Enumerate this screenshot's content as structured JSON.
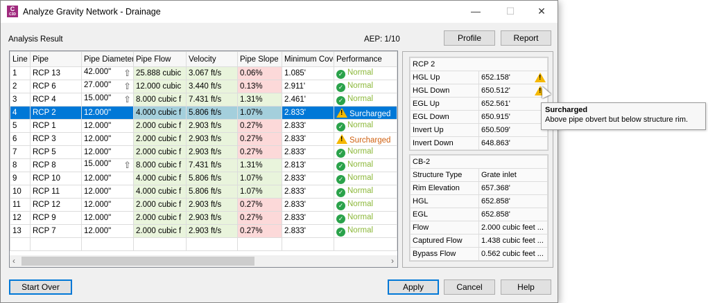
{
  "window": {
    "title": "Analyze Gravity Network - Drainage",
    "app_icon": "C3D",
    "controls": {
      "minimize": "—",
      "maximize": "☐",
      "close": "✕"
    }
  },
  "header": {
    "section_label": "Analysis Result",
    "aep": "AEP: 1/10",
    "profile_button": "Profile",
    "report_button": "Report"
  },
  "table": {
    "columns": [
      "Line",
      "Pipe",
      "Pipe Diameter",
      "Pipe Flow",
      "Velocity",
      "Pipe Slope",
      "Minimum Cover",
      "Performance"
    ],
    "selected_line": "4",
    "rows": [
      {
        "line": "1",
        "pipe": "RCP 13",
        "diameter": "42.000\"",
        "arrow": true,
        "flow": "25.888 cubic",
        "velocity": "3.067 ft/s",
        "slope": "0.06%",
        "slope_status": "bad",
        "cover": "1.085'",
        "performance": "Normal"
      },
      {
        "line": "2",
        "pipe": "RCP 6",
        "diameter": "27.000\"",
        "arrow": true,
        "flow": "12.000 cubic",
        "velocity": "3.440 ft/s",
        "slope": "0.13%",
        "slope_status": "bad",
        "cover": "2.911'",
        "performance": "Normal"
      },
      {
        "line": "3",
        "pipe": "RCP 4",
        "diameter": "15.000\"",
        "arrow": true,
        "flow": "8.000 cubic f",
        "velocity": "7.431 ft/s",
        "slope": "1.31%",
        "slope_status": "good",
        "cover": "2.461'",
        "performance": "Normal"
      },
      {
        "line": "4",
        "pipe": "RCP 2",
        "diameter": "12.000\"",
        "arrow": false,
        "flow": "4.000 cubic f",
        "velocity": "5.806 ft/s",
        "slope": "1.07%",
        "slope_status": "good",
        "cover": "2.833'",
        "performance": "Surcharged"
      },
      {
        "line": "5",
        "pipe": "RCP 1",
        "diameter": "12.000\"",
        "arrow": false,
        "flow": "2.000 cubic f",
        "velocity": "2.903 ft/s",
        "slope": "0.27%",
        "slope_status": "bad",
        "cover": "2.833'",
        "performance": "Normal"
      },
      {
        "line": "6",
        "pipe": "RCP 3",
        "diameter": "12.000\"",
        "arrow": false,
        "flow": "2.000 cubic f",
        "velocity": "2.903 ft/s",
        "slope": "0.27%",
        "slope_status": "bad",
        "cover": "2.833'",
        "performance": "Surcharged"
      },
      {
        "line": "7",
        "pipe": "RCP 5",
        "diameter": "12.000\"",
        "arrow": false,
        "flow": "2.000 cubic f",
        "velocity": "2.903 ft/s",
        "slope": "0.27%",
        "slope_status": "bad",
        "cover": "2.833'",
        "performance": "Normal"
      },
      {
        "line": "8",
        "pipe": "RCP 8",
        "diameter": "15.000\"",
        "arrow": true,
        "flow": "8.000 cubic f",
        "velocity": "7.431 ft/s",
        "slope": "1.31%",
        "slope_status": "good",
        "cover": "2.813'",
        "performance": "Normal"
      },
      {
        "line": "9",
        "pipe": "RCP 10",
        "diameter": "12.000\"",
        "arrow": false,
        "flow": "4.000 cubic f",
        "velocity": "5.806 ft/s",
        "slope": "1.07%",
        "slope_status": "good",
        "cover": "2.833'",
        "performance": "Normal"
      },
      {
        "line": "10",
        "pipe": "RCP 11",
        "diameter": "12.000\"",
        "arrow": false,
        "flow": "4.000 cubic f",
        "velocity": "5.806 ft/s",
        "slope": "1.07%",
        "slope_status": "good",
        "cover": "2.833'",
        "performance": "Normal"
      },
      {
        "line": "11",
        "pipe": "RCP 12",
        "diameter": "12.000\"",
        "arrow": false,
        "flow": "2.000 cubic f",
        "velocity": "2.903 ft/s",
        "slope": "0.27%",
        "slope_status": "bad",
        "cover": "2.833'",
        "performance": "Normal"
      },
      {
        "line": "12",
        "pipe": "RCP 9",
        "diameter": "12.000\"",
        "arrow": false,
        "flow": "2.000 cubic f",
        "velocity": "2.903 ft/s",
        "slope": "0.27%",
        "slope_status": "bad",
        "cover": "2.833'",
        "performance": "Normal"
      },
      {
        "line": "13",
        "pipe": "RCP 7",
        "diameter": "12.000\"",
        "arrow": false,
        "flow": "2.000 cubic f",
        "velocity": "2.903 ft/s",
        "slope": "0.27%",
        "slope_status": "bad",
        "cover": "2.833'",
        "performance": "Normal"
      }
    ]
  },
  "pipe_props": {
    "title": "RCP 2",
    "rows": [
      {
        "label": "HGL Up",
        "value": "652.158'",
        "warning": true
      },
      {
        "label": "HGL Down",
        "value": "650.512'",
        "warning": true
      },
      {
        "label": "EGL Up",
        "value": "652.561'",
        "warning": false
      },
      {
        "label": "EGL Down",
        "value": "650.915'",
        "warning": false
      },
      {
        "label": "Invert Up",
        "value": "650.509'",
        "warning": false
      },
      {
        "label": "Invert Down",
        "value": "648.863'",
        "warning": false
      }
    ]
  },
  "structure_props": {
    "title": "CB-2",
    "rows": [
      {
        "label": "Structure Type",
        "value": "Grate inlet"
      },
      {
        "label": "Rim Elevation",
        "value": "657.368'"
      },
      {
        "label": "HGL",
        "value": "652.858'"
      },
      {
        "label": "EGL",
        "value": "652.858'"
      },
      {
        "label": "Flow",
        "value": "2.000 cubic feet ..."
      },
      {
        "label": "Captured Flow",
        "value": "1.438 cubic feet ..."
      },
      {
        "label": "Bypass Flow",
        "value": "0.562 cubic feet ..."
      }
    ]
  },
  "tooltip": {
    "title": "Surcharged",
    "text": "Above pipe obvert but below structure rim."
  },
  "footer": {
    "start_over": "Start Over",
    "apply": "Apply",
    "cancel": "Cancel",
    "help": "Help"
  },
  "colors": {
    "selection": "#0078d7",
    "good_cell": "#e9f4dc",
    "bad_cell": "#fcd9d9",
    "normal_text": "#8cb83a",
    "surcharged_text": "#d06010"
  }
}
